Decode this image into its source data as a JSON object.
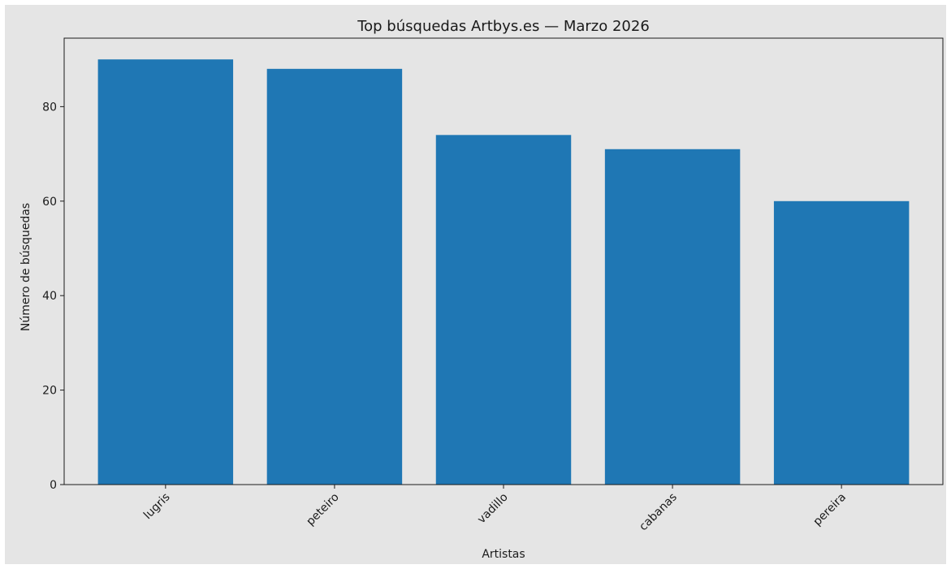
{
  "chart_data": {
    "type": "bar",
    "title": "Top búsquedas Artbys.es — Marzo 2026",
    "xlabel": "Artistas",
    "ylabel": "Número de búsquedas",
    "categories": [
      "lugris",
      "peteiro",
      "vadillo",
      "cabanas",
      "pereira"
    ],
    "values": [
      90,
      88,
      74,
      71,
      60
    ],
    "ylim": [
      0,
      94.5
    ],
    "yticks": [
      0,
      20,
      40,
      60,
      80
    ],
    "ytick_labels": [
      "0",
      "20",
      "40",
      "60",
      "80"
    ],
    "grid": false,
    "legend": "none",
    "bar_color": "#1f77b4",
    "axes_background": "#e5e5e5",
    "figure_background": "#e5e5e5"
  }
}
